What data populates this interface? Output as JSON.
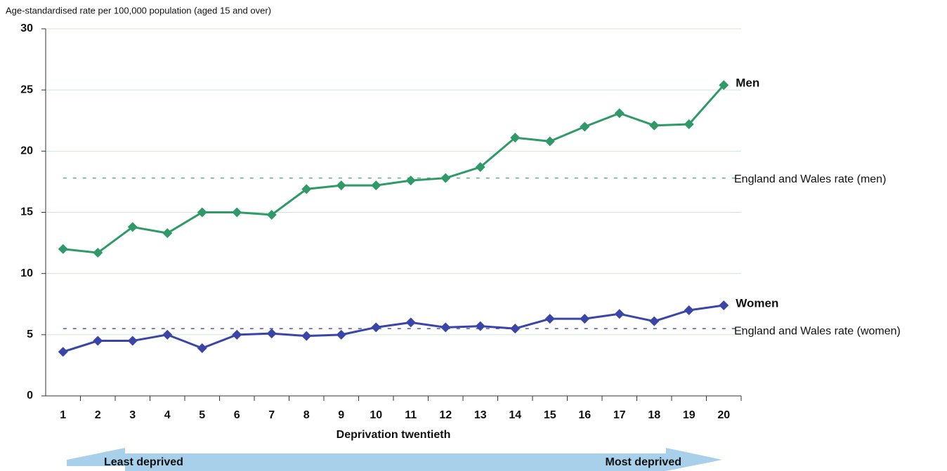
{
  "chart_data": {
    "type": "line",
    "title": "Age-standardised rate per 100,000 population (aged 15 and over)",
    "x_label": "Deprivation twentieth",
    "categories": [
      "1",
      "2",
      "3",
      "4",
      "5",
      "6",
      "7",
      "8",
      "9",
      "10",
      "11",
      "12",
      "13",
      "14",
      "15",
      "16",
      "17",
      "18",
      "19",
      "20"
    ],
    "series": [
      {
        "name": "Men",
        "color": "#2f9a68",
        "values": [
          12.0,
          11.7,
          13.8,
          13.3,
          15.0,
          15.0,
          14.8,
          16.9,
          17.2,
          17.2,
          17.6,
          17.8,
          18.7,
          21.1,
          20.8,
          22.0,
          23.1,
          22.1,
          22.2,
          25.4
        ]
      },
      {
        "name": "Women",
        "color": "#3a45a8",
        "values": [
          3.6,
          4.5,
          4.5,
          5.0,
          3.9,
          5.0,
          5.1,
          4.9,
          5.0,
          5.6,
          6.0,
          5.6,
          5.7,
          5.5,
          6.3,
          6.3,
          6.7,
          6.1,
          7.0,
          7.4
        ]
      }
    ],
    "reference_lines": [
      {
        "label": "England and Wales rate (men)",
        "value": 17.8,
        "color": "#55b07a"
      },
      {
        "label": "England and Wales rate (women)",
        "value": 5.5,
        "color": "#4a55b8"
      }
    ],
    "ylim": [
      0,
      30
    ],
    "yticks": [
      0,
      5,
      10,
      15,
      20,
      25,
      30
    ],
    "grid": true,
    "arrow_labels": {
      "left": "Least deprived",
      "right": "Most deprived"
    }
  }
}
